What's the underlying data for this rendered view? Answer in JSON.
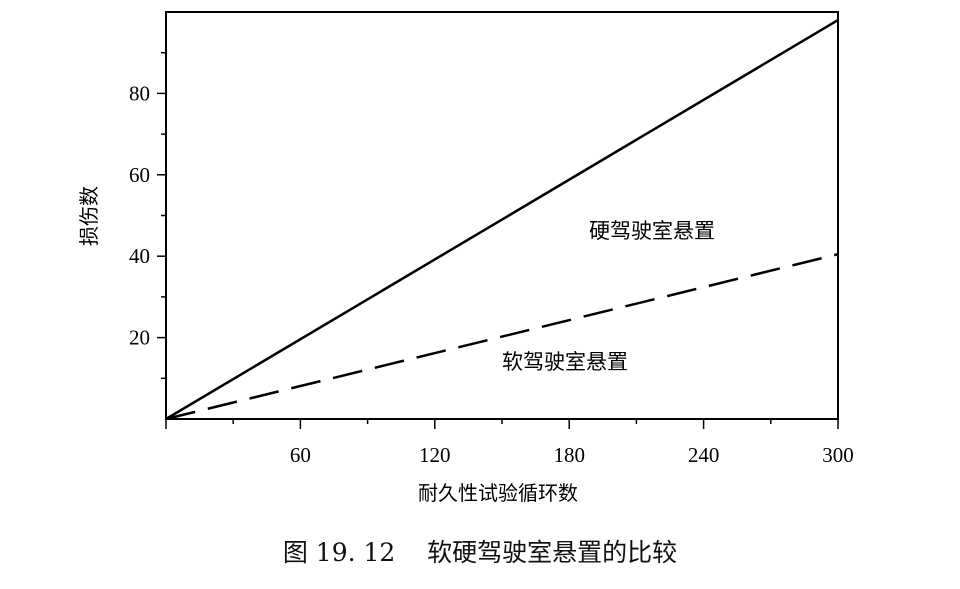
{
  "chart_data": {
    "type": "line",
    "title": "",
    "xlabel": "耐久性试验循环数",
    "ylabel": "损伤数",
    "xlim": [
      0,
      300
    ],
    "ylim": [
      0,
      100
    ],
    "x_ticks": [
      60,
      120,
      180,
      240,
      300
    ],
    "x_tick_labels": [
      "60",
      "120",
      "180",
      "240",
      "300"
    ],
    "y_ticks": [
      20,
      40,
      60,
      80
    ],
    "y_tick_labels": [
      "20",
      "40",
      "60",
      "80"
    ],
    "grid": false,
    "legend": "none",
    "series": [
      {
        "name": "硬驾驶室悬置",
        "style": "solid",
        "color": "#000000",
        "x": [
          0,
          300
        ],
        "y": [
          0,
          98
        ]
      },
      {
        "name": "软驾驶室悬置",
        "style": "dashed",
        "color": "#000000",
        "x": [
          0,
          300
        ],
        "y": [
          0,
          40.5
        ]
      }
    ],
    "annotations": [
      {
        "text": "硬驾驶室悬置",
        "series": 0
      },
      {
        "text": "软驾驶室悬置",
        "series": 1
      }
    ]
  },
  "caption": "图 19. 12    软硬驾驶室悬置的比较"
}
